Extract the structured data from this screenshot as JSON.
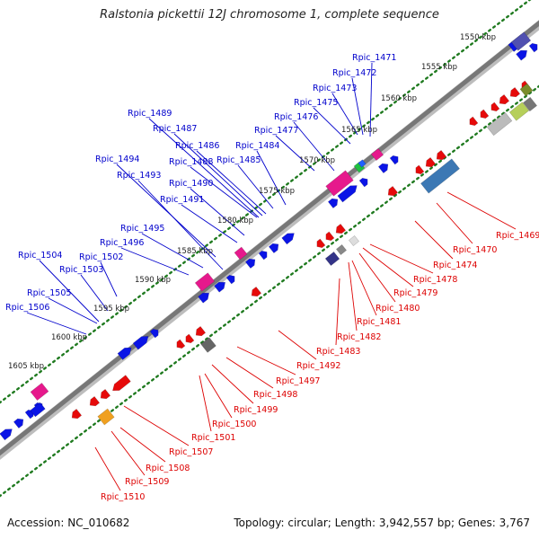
{
  "title": "Ralstonia pickettii 12J chromosome 1, complete sequence",
  "footer": {
    "accession": "Accession: NC_010682",
    "summary": "Topology: circular; Length: 3,942,557 bp; Genes: 3,767"
  },
  "colors": {
    "forward_label": "#0000cc",
    "reverse_label": "#dd0000",
    "backbone": "#6e6e6e",
    "tick_dots": "#1f7a1f",
    "forward_cds": "#0a14e6",
    "reverse_cds": "#e60a0a",
    "trna": "#e6198c",
    "rrna_block": "#3c78b4"
  },
  "scale_labels": [
    "1550 kbp",
    "1555 kbp",
    "1560 kbp",
    "1565 kbp",
    "1570 kbp",
    "1575 kbp",
    "1580 kbp",
    "1585 kbp",
    "1590 kbp",
    "1595 kbp",
    "1600 kbp",
    "1605 kbp"
  ],
  "forward_genes": [
    "Rpic_1471",
    "Rpic_1472",
    "Rpic_1473",
    "Rpic_1475",
    "Rpic_1476",
    "Rpic_1477",
    "Rpic_1484",
    "Rpic_1485",
    "Rpic_1486",
    "Rpic_1487",
    "Rpic_1488",
    "Rpic_1489",
    "Rpic_1490",
    "Rpic_1491",
    "Rpic_1493",
    "Rpic_1494",
    "Rpic_1495",
    "Rpic_1496",
    "Rpic_1502",
    "Rpic_1503",
    "Rpic_1504",
    "Rpic_1505",
    "Rpic_1506"
  ],
  "reverse_genes": [
    "Rpic_1469",
    "Rpic_1470",
    "Rpic_1474",
    "Rpic_1478",
    "Rpic_1479",
    "Rpic_1480",
    "Rpic_1481",
    "Rpic_1482",
    "Rpic_1483",
    "Rpic_1492",
    "Rpic_1497",
    "Rpic_1498",
    "Rpic_1499",
    "Rpic_1500",
    "Rpic_1501",
    "Rpic_1507",
    "Rpic_1508",
    "Rpic_1509",
    "Rpic_1510"
  ]
}
